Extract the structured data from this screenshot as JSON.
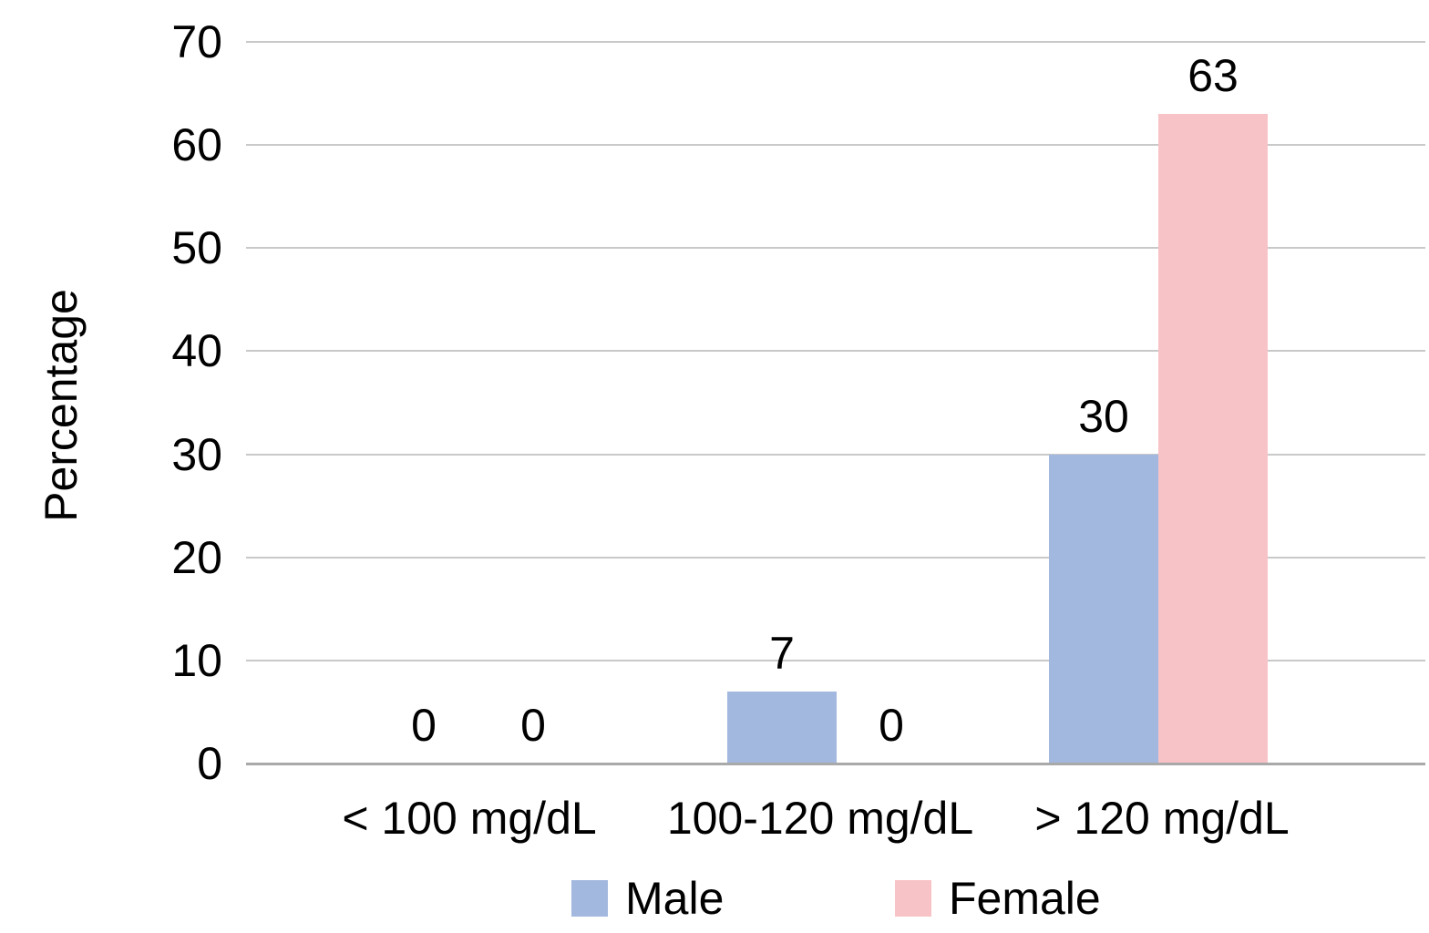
{
  "chart_data": {
    "type": "bar",
    "title": "",
    "categories": [
      "< 100 mg/dL",
      "100-120 mg/dL",
      "> 120 mg/dL"
    ],
    "series": [
      {
        "name": "Male",
        "color": "#a3b8de",
        "values": [
          0,
          7,
          30
        ]
      },
      {
        "name": "Female",
        "color": "#f8c3c6",
        "values": [
          0,
          0,
          63
        ]
      }
    ],
    "xlabel": "",
    "ylabel": "Percentage",
    "ylim": [
      0,
      70
    ],
    "ytick_step": 10,
    "yticks": [
      0,
      10,
      20,
      30,
      40,
      50,
      60,
      70
    ],
    "grid": "horizontal",
    "legend_position": "bottom",
    "data_labels": "outside-end"
  },
  "colors": {
    "male_bar": "#a3b8de",
    "female_bar": "#f8c3c6",
    "gridline": "#c9c9c9",
    "axis_line": "#a9a9a9",
    "text": "#000000",
    "background": "#ffffff"
  }
}
